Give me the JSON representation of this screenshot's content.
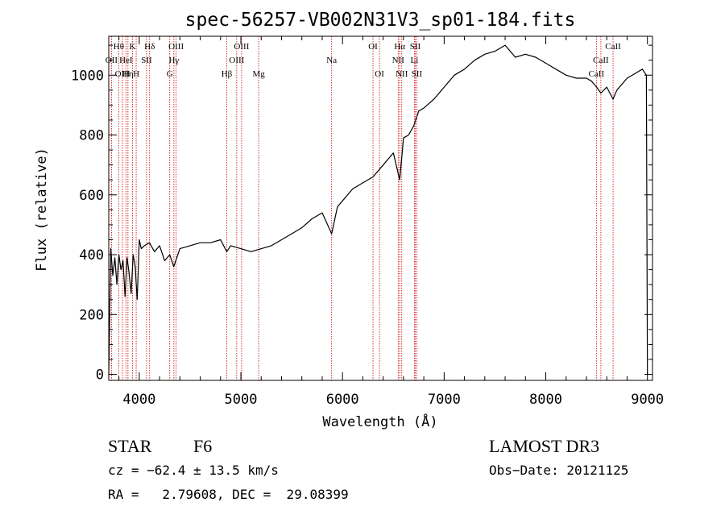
{
  "chart_data": {
    "type": "line",
    "title": "spec-56257-VB002N31V3_sp01-184.fits",
    "xlabel": "Wavelength (Å)",
    "ylabel": "Flux (relative)",
    "xlim": [
      3700,
      9050
    ],
    "ylim": [
      -20,
      1130
    ],
    "x_ticks": [
      4000,
      5000,
      6000,
      7000,
      8000,
      9000
    ],
    "y_ticks": [
      0,
      200,
      400,
      600,
      800,
      1000
    ],
    "line_color": "#000000",
    "marker_color": "#cc0000",
    "series": [
      {
        "name": "spectrum",
        "x": [
          3700,
          3720,
          3740,
          3760,
          3780,
          3800,
          3820,
          3840,
          3860,
          3880,
          3900,
          3920,
          3940,
          3960,
          3980,
          4000,
          4020,
          4050,
          4100,
          4150,
          4200,
          4250,
          4300,
          4340,
          4400,
          4500,
          4600,
          4700,
          4800,
          4861,
          4900,
          5000,
          5100,
          5200,
          5300,
          5400,
          5500,
          5600,
          5700,
          5800,
          5893,
          5950,
          6000,
          6100,
          6200,
          6300,
          6400,
          6500,
          6563,
          6600,
          6650,
          6700,
          6750,
          6800,
          6900,
          7000,
          7100,
          7200,
          7300,
          7400,
          7500,
          7600,
          7650,
          7700,
          7800,
          7900,
          8000,
          8100,
          8200,
          8300,
          8400,
          8450,
          8500,
          8542,
          8600,
          8662,
          8700,
          8800,
          8900,
          8950,
          8990,
          9000
        ],
        "y": [
          0,
          420,
          330,
          390,
          300,
          400,
          350,
          380,
          260,
          390,
          340,
          270,
          400,
          360,
          250,
          450,
          420,
          430,
          440,
          410,
          430,
          380,
          400,
          360,
          420,
          430,
          440,
          440,
          450,
          410,
          430,
          420,
          410,
          420,
          430,
          450,
          470,
          490,
          520,
          540,
          470,
          560,
          580,
          620,
          640,
          660,
          700,
          740,
          650,
          790,
          800,
          830,
          880,
          890,
          920,
          960,
          1000,
          1020,
          1050,
          1070,
          1080,
          1100,
          1080,
          1060,
          1070,
          1060,
          1040,
          1020,
          1000,
          990,
          990,
          980,
          960,
          940,
          960,
          920,
          950,
          990,
          1010,
          1020,
          1000,
          0
        ]
      }
    ],
    "line_markers": [
      {
        "wavelength": 3727,
        "label": "OII",
        "row": 1
      },
      {
        "wavelength": 3798,
        "label": "Hθ",
        "row": 0
      },
      {
        "wavelength": 3835,
        "label": "OIII",
        "row": 2
      },
      {
        "wavelength": 3869,
        "label": "HeI",
        "row": 1
      },
      {
        "wavelength": 3889,
        "label": "Hη",
        "row": 2
      },
      {
        "wavelength": 3934,
        "label": "K",
        "row": 0
      },
      {
        "wavelength": 3970,
        "label": "H",
        "row": 2
      },
      {
        "wavelength": 4072,
        "label": "SII",
        "row": 1
      },
      {
        "wavelength": 4102,
        "label": "Hδ",
        "row": 0
      },
      {
        "wavelength": 4300,
        "label": "G",
        "row": 2
      },
      {
        "wavelength": 4341,
        "label": "Hγ",
        "row": 1
      },
      {
        "wavelength": 4363,
        "label": "OIII",
        "row": 0
      },
      {
        "wavelength": 4861,
        "label": "Hβ",
        "row": 2
      },
      {
        "wavelength": 4959,
        "label": "OIII",
        "row": 1
      },
      {
        "wavelength": 5007,
        "label": "OIII",
        "row": 0
      },
      {
        "wavelength": 5175,
        "label": "Mg",
        "row": 2
      },
      {
        "wavelength": 5893,
        "label": "Na",
        "row": 1
      },
      {
        "wavelength": 6300,
        "label": "OI",
        "row": 0
      },
      {
        "wavelength": 6364,
        "label": "OI",
        "row": 2
      },
      {
        "wavelength": 6548,
        "label": "NII",
        "row": 1
      },
      {
        "wavelength": 6563,
        "label": "Hα",
        "row": 0
      },
      {
        "wavelength": 6583,
        "label": "NII",
        "row": 2
      },
      {
        "wavelength": 6707,
        "label": "Li",
        "row": 1
      },
      {
        "wavelength": 6716,
        "label": "SII",
        "row": 0
      },
      {
        "wavelength": 6731,
        "label": "SII",
        "row": 2
      },
      {
        "wavelength": 8498,
        "label": "CaII",
        "row": 2
      },
      {
        "wavelength": 8542,
        "label": "CaII",
        "row": 1
      },
      {
        "wavelength": 8662,
        "label": "CaII",
        "row": 0
      }
    ]
  },
  "info": {
    "class_label": "STAR",
    "subclass": "F6",
    "survey": "LAMOST DR3",
    "cz": "cz = −62.4 ± 13.5 km/s",
    "obs_date": "Obs−Date: 20121125",
    "coords": "RA =   2.79608, DEC =  29.08399"
  }
}
